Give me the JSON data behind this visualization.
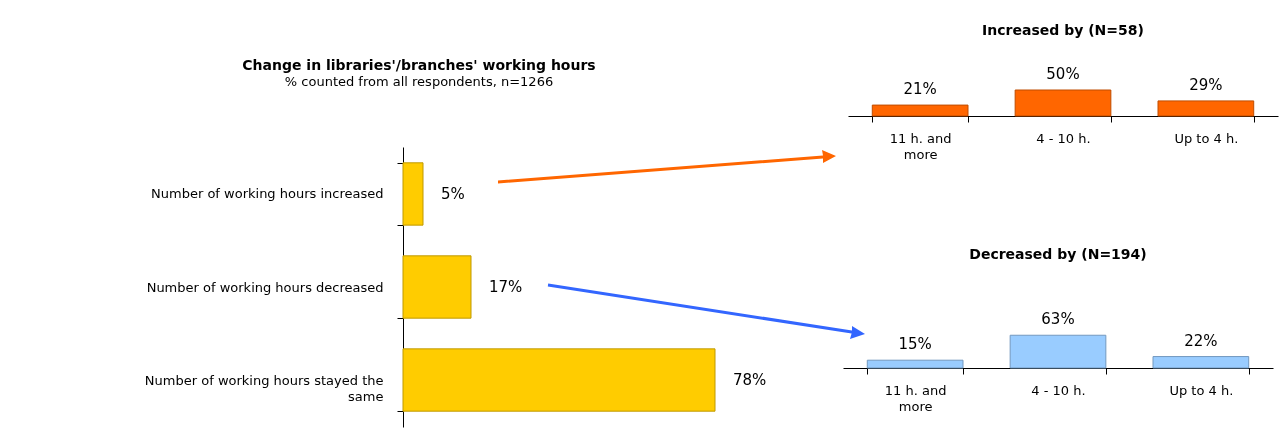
{
  "chart_data": [
    {
      "type": "bar",
      "orientation": "horizontal",
      "title": "Change in libraries'/branches' working hours",
      "subtitle": "% counted from all respondents, n=1266",
      "categories": [
        "Number of working hours increased",
        "Number of working hours decreased",
        "Number of working hours stayed the same"
      ],
      "values": [
        5,
        17,
        78
      ],
      "color": "#ffcc00",
      "value_labels": [
        "5%",
        "17%",
        "78%"
      ]
    },
    {
      "type": "bar",
      "title": "Increased by (N=58)",
      "categories": [
        "11 h. and more",
        "4 - 10 h.",
        "Up to 4 h."
      ],
      "values": [
        21,
        50,
        29
      ],
      "color": "#ff6600",
      "value_labels": [
        "21%",
        "50%",
        "29%"
      ]
    },
    {
      "type": "bar",
      "title": "Decreased by (N=194)",
      "categories": [
        "11 h. and more",
        "4 - 10 h.",
        "Up to 4 h."
      ],
      "values": [
        15,
        63,
        22
      ],
      "color": "#99ccff",
      "value_labels": [
        "15%",
        "63%",
        "22%"
      ]
    }
  ]
}
